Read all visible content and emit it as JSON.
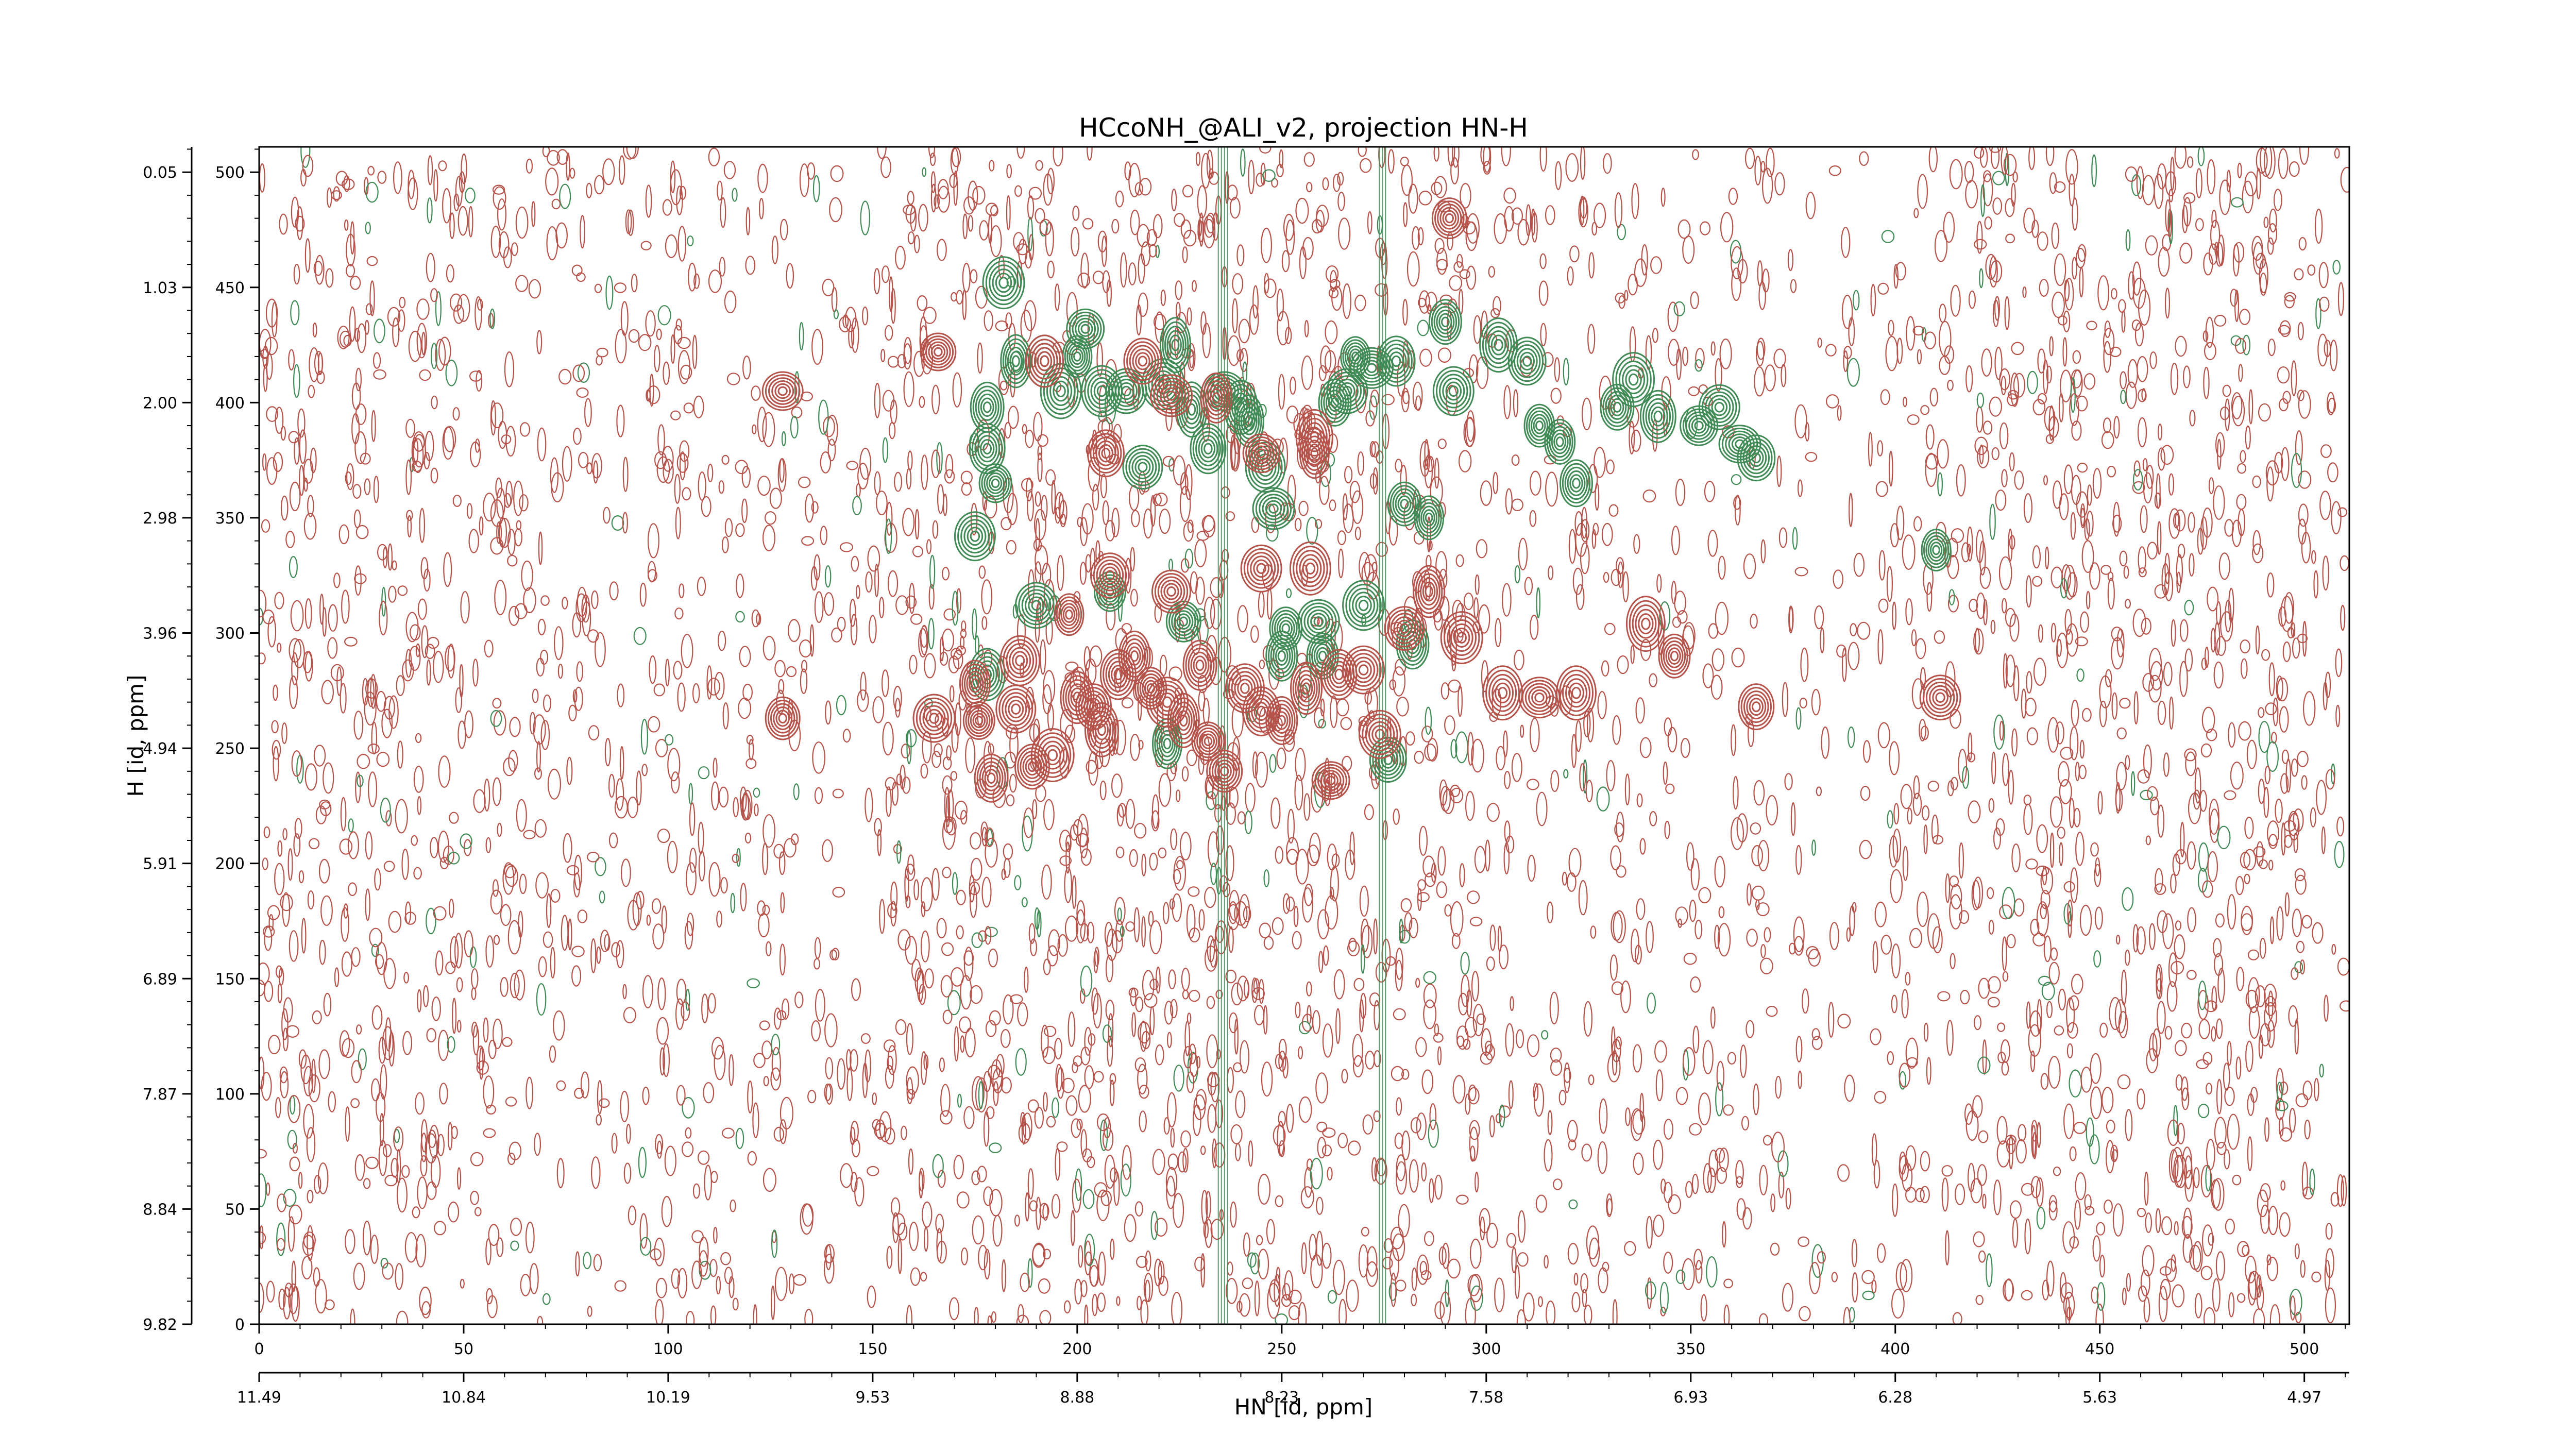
{
  "chart_data": {
    "type": "contour",
    "title": "HCcoNH_@ALI_v2, projection HN-H",
    "xlabel": "HN [id, ppm]",
    "ylabel": "H [id, ppm]",
    "xlim": [
      0,
      511
    ],
    "ylim": [
      0,
      511
    ],
    "x_ticks_index": [
      "0",
      "50",
      "100",
      "150",
      "200",
      "250",
      "300",
      "350",
      "400",
      "450",
      "500"
    ],
    "x_ticks_ppm": [
      "11.49",
      "10.84",
      "10.19",
      "9.53",
      "8.88",
      "8.23",
      "7.58",
      "6.93",
      "6.28",
      "5.63",
      "4.97"
    ],
    "y_ticks_index": [
      "0",
      "50",
      "100",
      "150",
      "200",
      "250",
      "300",
      "350",
      "400",
      "450",
      "500"
    ],
    "y_ticks_ppm": [
      "9.82",
      "8.84",
      "7.87",
      "6.89",
      "5.91",
      "4.94",
      "3.96",
      "2.98",
      "2.00",
      "1.03",
      "0.05"
    ],
    "colors": {
      "positive": "#b5524a",
      "negative": "#3f8a55"
    },
    "positive_peaks": [
      [
        128,
        405
      ],
      [
        166,
        422
      ],
      [
        175,
        278
      ],
      [
        176,
        262
      ],
      [
        179,
        237
      ],
      [
        185,
        267
      ],
      [
        189,
        242
      ],
      [
        194,
        247
      ],
      [
        200,
        272
      ],
      [
        204,
        268
      ],
      [
        206,
        258
      ],
      [
        210,
        282
      ],
      [
        214,
        290
      ],
      [
        218,
        276
      ],
      [
        222,
        270
      ],
      [
        226,
        262
      ],
      [
        230,
        286
      ],
      [
        232,
        253
      ],
      [
        236,
        240
      ],
      [
        241,
        276
      ],
      [
        245,
        266
      ],
      [
        250,
        262
      ],
      [
        256,
        276
      ],
      [
        262,
        236
      ],
      [
        264,
        282
      ],
      [
        270,
        284
      ],
      [
        274,
        256
      ],
      [
        280,
        302
      ],
      [
        286,
        318
      ],
      [
        291,
        480
      ],
      [
        294,
        298
      ],
      [
        304,
        274
      ],
      [
        313,
        272
      ],
      [
        322,
        274
      ],
      [
        339,
        304
      ],
      [
        346,
        290
      ],
      [
        366,
        268
      ],
      [
        411,
        272
      ],
      [
        245,
        328
      ],
      [
        257,
        328
      ],
      [
        198,
        308
      ],
      [
        208,
        325
      ],
      [
        223,
        318
      ],
      [
        186,
        288
      ],
      [
        207,
        378
      ],
      [
        223,
        403
      ],
      [
        234,
        402
      ],
      [
        245,
        378
      ],
      [
        258,
        378
      ],
      [
        258,
        385
      ],
      [
        192,
        418
      ],
      [
        216,
        418
      ],
      [
        128,
        263
      ],
      [
        165,
        263
      ]
    ],
    "negative_peaks": [
      [
        182,
        452
      ],
      [
        178,
        380
      ],
      [
        175,
        342
      ],
      [
        180,
        365
      ],
      [
        185,
        418
      ],
      [
        192,
        418
      ],
      [
        178,
        398
      ],
      [
        196,
        405
      ],
      [
        200,
        420
      ],
      [
        202,
        432
      ],
      [
        206,
        405
      ],
      [
        212,
        405
      ],
      [
        216,
        372
      ],
      [
        221,
        408
      ],
      [
        224,
        425
      ],
      [
        228,
        397
      ],
      [
        232,
        380
      ],
      [
        236,
        405
      ],
      [
        240,
        398
      ],
      [
        242,
        392
      ],
      [
        246,
        372
      ],
      [
        248,
        354
      ],
      [
        260,
        290
      ],
      [
        263,
        400
      ],
      [
        266,
        405
      ],
      [
        268,
        420
      ],
      [
        272,
        415
      ],
      [
        278,
        418
      ],
      [
        280,
        356
      ],
      [
        286,
        350
      ],
      [
        290,
        435
      ],
      [
        292,
        405
      ],
      [
        303,
        425
      ],
      [
        310,
        418
      ],
      [
        313,
        390
      ],
      [
        318,
        383
      ],
      [
        322,
        365
      ],
      [
        332,
        398
      ],
      [
        336,
        410
      ],
      [
        342,
        394
      ],
      [
        352,
        390
      ],
      [
        357,
        398
      ],
      [
        362,
        382
      ],
      [
        366,
        376
      ],
      [
        410,
        336
      ],
      [
        190,
        312
      ],
      [
        208,
        318
      ],
      [
        226,
        305
      ],
      [
        251,
        302
      ],
      [
        270,
        312
      ],
      [
        282,
        295
      ],
      [
        250,
        290
      ],
      [
        178,
        282
      ],
      [
        276,
        245
      ],
      [
        259,
        305
      ],
      [
        222,
        252
      ]
    ]
  }
}
